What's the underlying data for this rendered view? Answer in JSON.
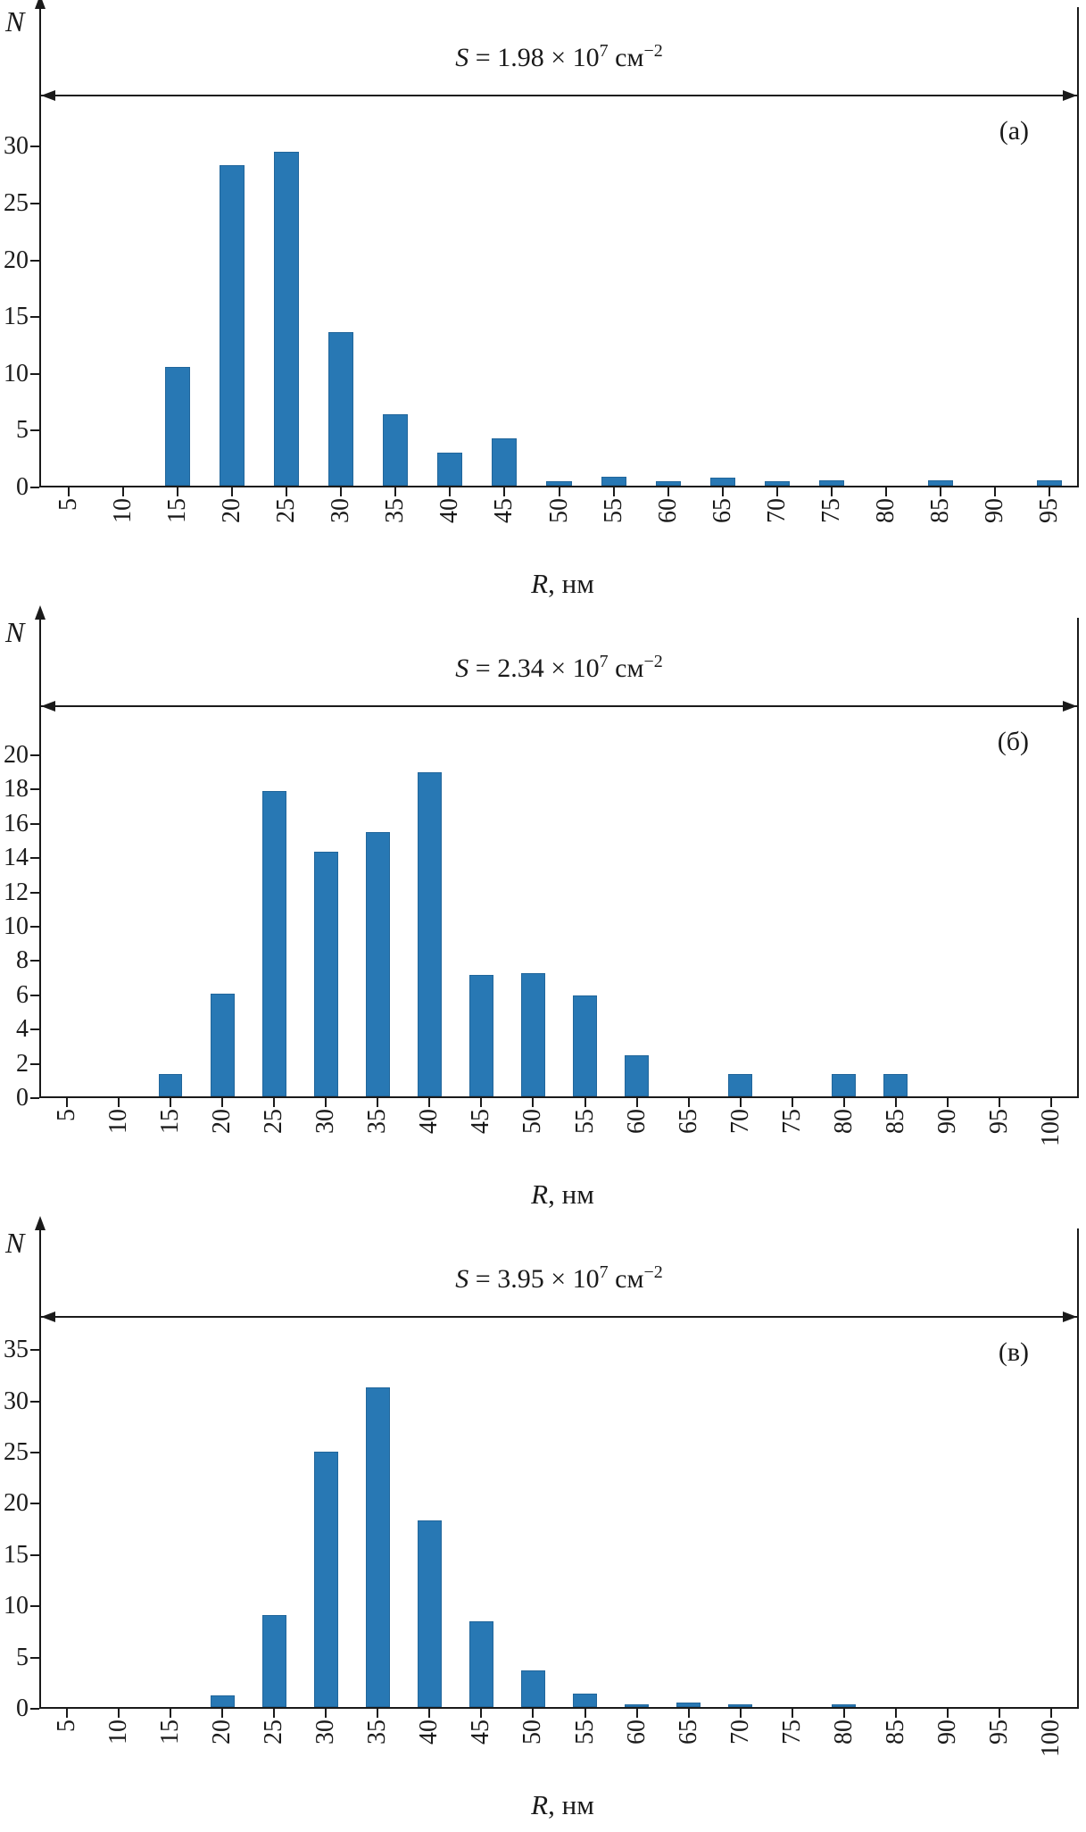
{
  "figure": {
    "bar_color": "#2878b4",
    "axis_color": "#1a1a1a"
  },
  "chart_data": [
    {
      "type": "bar",
      "panel_label": "(а)",
      "ylabel": "N",
      "xlabel_var": "R",
      "xlabel_rest": ", нм",
      "annotation": {
        "var": "S",
        "eq": " = 1.98 × 10",
        "exp": "7",
        "unit": " см",
        "unit_exp": "−2"
      },
      "categories": [
        5,
        10,
        15,
        20,
        25,
        30,
        35,
        40,
        45,
        50,
        55,
        60,
        65,
        70,
        75,
        80,
        85,
        90,
        95
      ],
      "values": [
        0,
        0,
        10.5,
        28.3,
        29.5,
        13.6,
        6.3,
        2.9,
        4.2,
        0.4,
        0.8,
        0.4,
        0.7,
        0.4,
        0.5,
        0,
        0.5,
        0,
        0.5
      ],
      "yticks": [
        0,
        5,
        10,
        15,
        20,
        25,
        30
      ],
      "ylim": [
        0,
        41.5
      ],
      "grid": false,
      "legend": "none"
    },
    {
      "type": "bar",
      "panel_label": "(б)",
      "ylabel": "N",
      "xlabel_var": "R",
      "xlabel_rest": ", нм",
      "annotation": {
        "var": "S",
        "eq": " = 2.34 × 10",
        "exp": "7",
        "unit": " см",
        "unit_exp": "−2"
      },
      "categories": [
        5,
        10,
        15,
        20,
        25,
        30,
        35,
        40,
        45,
        50,
        55,
        60,
        65,
        70,
        75,
        80,
        85,
        90,
        95,
        100
      ],
      "values": [
        0,
        0,
        1.3,
        6,
        17.9,
        14.3,
        15.5,
        19,
        7.1,
        7.2,
        5.9,
        2.4,
        0,
        1.3,
        0,
        1.3,
        1.3,
        0,
        0,
        0
      ],
      "yticks": [
        0,
        2,
        4,
        6,
        8,
        10,
        12,
        14,
        16,
        18,
        20
      ],
      "ylim": [
        0,
        27.5
      ],
      "grid": false,
      "legend": "none"
    },
    {
      "type": "bar",
      "panel_label": "(в)",
      "ylabel": "N",
      "xlabel_var": "R",
      "xlabel_rest": ", нм",
      "annotation": {
        "var": "S",
        "eq": " = 3.95 × 10",
        "exp": "7",
        "unit": " см",
        "unit_exp": "−2"
      },
      "categories": [
        5,
        10,
        15,
        20,
        25,
        30,
        35,
        40,
        45,
        50,
        55,
        60,
        65,
        70,
        75,
        80,
        85,
        90,
        95,
        100
      ],
      "values": [
        0,
        0,
        0,
        1.1,
        9,
        25,
        31.3,
        18.3,
        8.4,
        3.6,
        1.3,
        0.3,
        0.4,
        0.3,
        0,
        0.3,
        0,
        0,
        0,
        0
      ],
      "yticks": [
        0,
        5,
        10,
        15,
        20,
        25,
        30,
        35
      ],
      "ylim": [
        0,
        46
      ],
      "grid": false,
      "legend": "none"
    }
  ]
}
